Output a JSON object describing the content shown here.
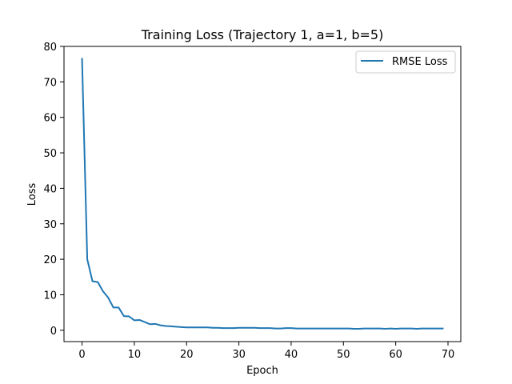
{
  "chart_data": {
    "type": "line",
    "title": "Training Loss (Trajectory 1, a=1, b=5)",
    "xlabel": "Epoch",
    "ylabel": "Loss",
    "xlim": [
      -3.45,
      72.45
    ],
    "ylim": [
      -3.2,
      80
    ],
    "xticks": [
      0,
      10,
      20,
      30,
      40,
      50,
      60,
      70
    ],
    "yticks": [
      0,
      10,
      20,
      30,
      40,
      50,
      60,
      70,
      80
    ],
    "grid": false,
    "legend_position": "top-right",
    "series": [
      {
        "name": "RMSE Loss",
        "color": "#1f77b4",
        "x": [
          0,
          1,
          2,
          3,
          4,
          5,
          6,
          7,
          8,
          9,
          10,
          11,
          12,
          13,
          14,
          15,
          16,
          17,
          18,
          19,
          20,
          21,
          22,
          23,
          24,
          25,
          26,
          27,
          28,
          29,
          30,
          31,
          32,
          33,
          34,
          35,
          36,
          37,
          38,
          39,
          40,
          41,
          42,
          43,
          44,
          45,
          46,
          47,
          48,
          49,
          50,
          51,
          52,
          53,
          54,
          55,
          56,
          57,
          58,
          59,
          60,
          61,
          62,
          63,
          64,
          65,
          66,
          67,
          68,
          69
        ],
        "y": [
          76.5,
          20,
          13.8,
          13.6,
          11,
          9.2,
          6.4,
          6.4,
          4,
          3.9,
          2.8,
          2.9,
          2.3,
          1.7,
          1.8,
          1.4,
          1.2,
          1.1,
          1,
          0.9,
          0.8,
          0.8,
          0.8,
          0.8,
          0.8,
          0.7,
          0.7,
          0.6,
          0.6,
          0.6,
          0.7,
          0.7,
          0.7,
          0.7,
          0.6,
          0.6,
          0.6,
          0.5,
          0.5,
          0.6,
          0.6,
          0.5,
          0.5,
          0.5,
          0.5,
          0.5,
          0.5,
          0.5,
          0.5,
          0.5,
          0.5,
          0.5,
          0.4,
          0.4,
          0.5,
          0.5,
          0.5,
          0.5,
          0.4,
          0.5,
          0.4,
          0.5,
          0.5,
          0.5,
          0.4,
          0.5,
          0.5,
          0.5,
          0.5,
          0.5
        ]
      }
    ]
  }
}
